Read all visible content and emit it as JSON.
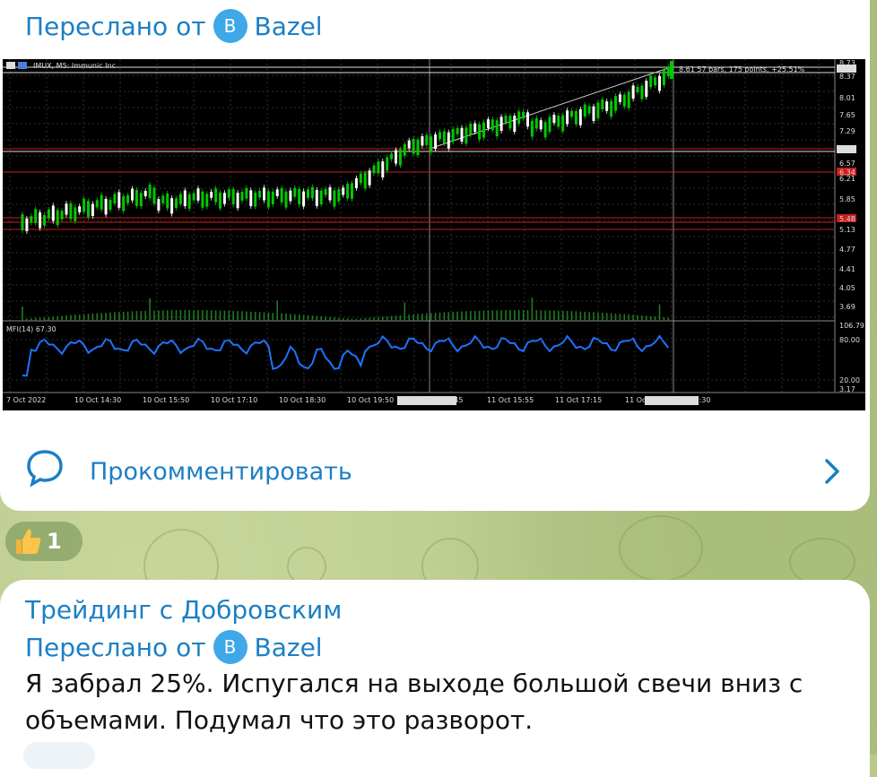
{
  "message1": {
    "forwarded_prefix": "Переслано от",
    "forwarded_from": "Bazel",
    "avatar_letter": "B",
    "comment_label": "Прокомментировать",
    "reaction": {
      "emoji": "thumbs-up",
      "count": "1"
    }
  },
  "chart": {
    "title": "IMUX, M5: Immunic Inc",
    "indicator_label": "MFI(14) 67.30",
    "ruler_text": "8.61  57 bars, 175 points, +25.51%",
    "price_ticks": [
      "8.73",
      "8.61",
      "8.37",
      "8.01",
      "7.65",
      "7.29",
      "6.88",
      "6.57",
      "6.34",
      "6.21",
      "5.85",
      "5.48",
      "5.13",
      "4.77",
      "4.41",
      "4.05",
      "3.69"
    ],
    "mfi_ticks": [
      "106.79",
      "80.00",
      "20.00",
      "3.17"
    ],
    "time_ticks": [
      "7 Oct 2022",
      "10 Oct 14:30",
      "10 Oct 15:50",
      "10 Oct 17:10",
      "10 Oct 18:30",
      "10 Oct 19:50",
      "2022.10.11 14:45",
      "11 Oct 15:55",
      "11 Oct 17:15",
      "11 Oct",
      "2022.10.11 19:30"
    ],
    "colors": {
      "background": "#000000",
      "bull": "#00c800",
      "bear": "#ffffff",
      "mfi": "#1e73ff",
      "level_red": "#c81e1e",
      "level_white": "#dcdcdc"
    }
  },
  "message2": {
    "channel": "Трейдинг с Добровским",
    "forwarded_prefix": "Переслано от",
    "forwarded_from": "Bazel",
    "avatar_letter": "B",
    "text": "Я забрал 25%. Испугался на выходе большой свечи вниз с объемами. Подумал что это разворот."
  }
}
